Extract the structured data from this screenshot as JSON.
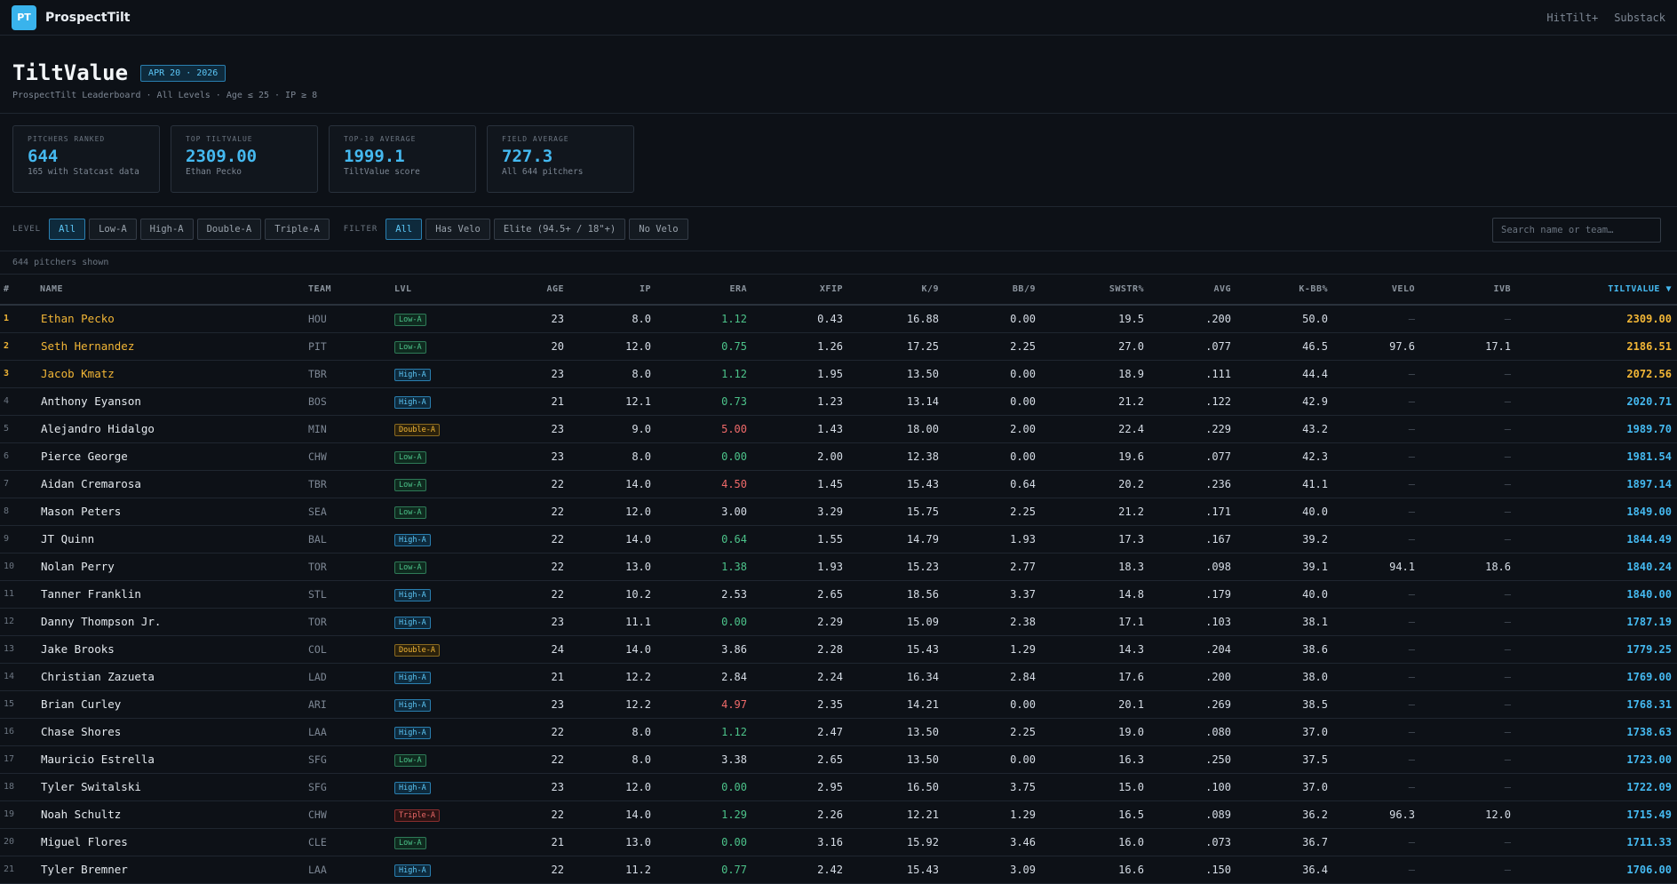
{
  "app": {
    "logo": "PT",
    "brand": "ProspectTilt",
    "nav": [
      "HitTilt+",
      "Substack"
    ]
  },
  "hero": {
    "title": "TiltValue",
    "date": "APR 20 · 2026",
    "subtitle": "ProspectTilt Leaderboard · All Levels · Age ≤ 25 · IP ≥ 8"
  },
  "stats": [
    {
      "label": "Pitchers Ranked",
      "value": "644",
      "sub": "165 with Statcast data"
    },
    {
      "label": "Top TiltValue",
      "value": "2309.00",
      "sub": "Ethan Pecko"
    },
    {
      "label": "Top-10 Average",
      "value": "1999.1",
      "sub": "TiltValue score"
    },
    {
      "label": "Field Average",
      "value": "727.3",
      "sub": "All 644 pitchers"
    }
  ],
  "filters": {
    "level_label": "LEVEL",
    "levels": [
      "All",
      "Low-A",
      "High-A",
      "Double-A",
      "Triple-A"
    ],
    "level_selected": "All",
    "filter_label": "FILTER",
    "filter_options": [
      "All",
      "Has Velo",
      "Elite (94.5+ / 18\"+)",
      "No Velo"
    ],
    "filter_selected": "All",
    "search_placeholder": "Search name or team…"
  },
  "count_text": "644 pitchers shown",
  "table": {
    "columns": [
      "#",
      "NAME",
      "TEAM",
      "LVL",
      "AGE",
      "IP",
      "ERA",
      "XFIP",
      "K/9",
      "BB/9",
      "SWSTR%",
      "AVG",
      "K-BB%",
      "VELO",
      "IVB",
      "TILTVALUE ▼"
    ],
    "rows": [
      [
        "1",
        "Ethan Pecko",
        "HOU",
        "Low-A",
        "23",
        "8.0",
        "1.12",
        "0.43",
        "16.88",
        "0.00",
        "19.5",
        ".200",
        "50.0",
        "–",
        "–",
        "2309.00"
      ],
      [
        "2",
        "Seth Hernandez",
        "PIT",
        "Low-A",
        "20",
        "12.0",
        "0.75",
        "1.26",
        "17.25",
        "2.25",
        "27.0",
        ".077",
        "46.5",
        "97.6",
        "17.1",
        "2186.51"
      ],
      [
        "3",
        "Jacob Kmatz",
        "TBR",
        "High-A",
        "23",
        "8.0",
        "1.12",
        "1.95",
        "13.50",
        "0.00",
        "18.9",
        ".111",
        "44.4",
        "–",
        "–",
        "2072.56"
      ],
      [
        "4",
        "Anthony Eyanson",
        "BOS",
        "High-A",
        "21",
        "12.1",
        "0.73",
        "1.23",
        "13.14",
        "0.00",
        "21.2",
        ".122",
        "42.9",
        "–",
        "–",
        "2020.71"
      ],
      [
        "5",
        "Alejandro Hidalgo",
        "MIN",
        "Double-A",
        "23",
        "9.0",
        "5.00",
        "1.43",
        "18.00",
        "2.00",
        "22.4",
        ".229",
        "43.2",
        "–",
        "–",
        "1989.70"
      ],
      [
        "6",
        "Pierce George",
        "CHW",
        "Low-A",
        "23",
        "8.0",
        "0.00",
        "2.00",
        "12.38",
        "0.00",
        "19.6",
        ".077",
        "42.3",
        "–",
        "–",
        "1981.54"
      ],
      [
        "7",
        "Aidan Cremarosa",
        "TBR",
        "Low-A",
        "22",
        "14.0",
        "4.50",
        "1.45",
        "15.43",
        "0.64",
        "20.2",
        ".236",
        "41.1",
        "–",
        "–",
        "1897.14"
      ],
      [
        "8",
        "Mason Peters",
        "SEA",
        "Low-A",
        "22",
        "12.0",
        "3.00",
        "3.29",
        "15.75",
        "2.25",
        "21.2",
        ".171",
        "40.0",
        "–",
        "–",
        "1849.00"
      ],
      [
        "9",
        "JT Quinn",
        "BAL",
        "High-A",
        "22",
        "14.0",
        "0.64",
        "1.55",
        "14.79",
        "1.93",
        "17.3",
        ".167",
        "39.2",
        "–",
        "–",
        "1844.49"
      ],
      [
        "10",
        "Nolan Perry",
        "TOR",
        "Low-A",
        "22",
        "13.0",
        "1.38",
        "1.93",
        "15.23",
        "2.77",
        "18.3",
        ".098",
        "39.1",
        "94.1",
        "18.6",
        "1840.24"
      ],
      [
        "11",
        "Tanner Franklin",
        "STL",
        "High-A",
        "22",
        "10.2",
        "2.53",
        "2.65",
        "18.56",
        "3.37",
        "14.8",
        ".179",
        "40.0",
        "–",
        "–",
        "1840.00"
      ],
      [
        "12",
        "Danny Thompson Jr.",
        "TOR",
        "High-A",
        "23",
        "11.1",
        "0.00",
        "2.29",
        "15.09",
        "2.38",
        "17.1",
        ".103",
        "38.1",
        "–",
        "–",
        "1787.19"
      ],
      [
        "13",
        "Jake Brooks",
        "COL",
        "Double-A",
        "24",
        "14.0",
        "3.86",
        "2.28",
        "15.43",
        "1.29",
        "14.3",
        ".204",
        "38.6",
        "–",
        "–",
        "1779.25"
      ],
      [
        "14",
        "Christian Zazueta",
        "LAD",
        "High-A",
        "21",
        "12.2",
        "2.84",
        "2.24",
        "16.34",
        "2.84",
        "17.6",
        ".200",
        "38.0",
        "–",
        "–",
        "1769.00"
      ],
      [
        "15",
        "Brian Curley",
        "ARI",
        "High-A",
        "23",
        "12.2",
        "4.97",
        "2.35",
        "14.21",
        "0.00",
        "20.1",
        ".269",
        "38.5",
        "–",
        "–",
        "1768.31"
      ],
      [
        "16",
        "Chase Shores",
        "LAA",
        "High-A",
        "22",
        "8.0",
        "1.12",
        "2.47",
        "13.50",
        "2.25",
        "19.0",
        ".080",
        "37.0",
        "–",
        "–",
        "1738.63"
      ],
      [
        "17",
        "Mauricio Estrella",
        "SFG",
        "Low-A",
        "22",
        "8.0",
        "3.38",
        "2.65",
        "13.50",
        "0.00",
        "16.3",
        ".250",
        "37.5",
        "–",
        "–",
        "1723.00"
      ],
      [
        "18",
        "Tyler Switalski",
        "SFG",
        "High-A",
        "23",
        "12.0",
        "0.00",
        "2.95",
        "16.50",
        "3.75",
        "15.0",
        ".100",
        "37.0",
        "–",
        "–",
        "1722.09"
      ],
      [
        "19",
        "Noah Schultz",
        "CHW",
        "Triple-A",
        "22",
        "14.0",
        "1.29",
        "2.26",
        "12.21",
        "1.29",
        "16.5",
        ".089",
        "36.2",
        "96.3",
        "12.0",
        "1715.49"
      ],
      [
        "20",
        "Miguel Flores",
        "CLE",
        "Low-A",
        "21",
        "13.0",
        "0.00",
        "3.16",
        "15.92",
        "3.46",
        "16.0",
        ".073",
        "36.7",
        "–",
        "–",
        "1711.33"
      ],
      [
        "21",
        "Tyler Bremner",
        "LAA",
        "High-A",
        "22",
        "11.2",
        "0.77",
        "2.42",
        "15.43",
        "3.09",
        "16.6",
        ".150",
        "36.4",
        "–",
        "–",
        "1706.00"
      ]
    ]
  },
  "colors": {
    "background": "#0d1117",
    "accent": "#45b9f0",
    "gold": "#f2b636",
    "good": "#4cc38a",
    "bad": "#f06a6a"
  }
}
